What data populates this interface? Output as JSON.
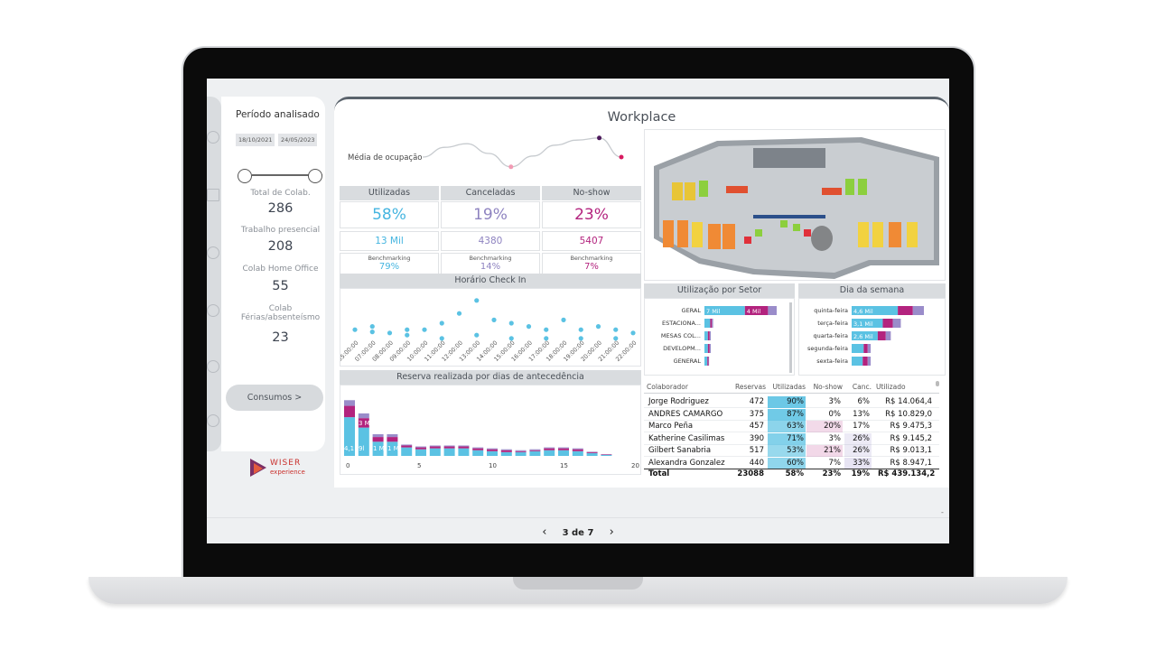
{
  "left_panel": {
    "periodo_label": "Período analisado",
    "date_start": "18/10/2021",
    "date_end": "24/05/2023",
    "kpis": [
      {
        "label": "Total de Colab.",
        "value": "286"
      },
      {
        "label": "Trabalho presencial",
        "value": "208"
      },
      {
        "label": "Colab Home Office",
        "value": "55"
      },
      {
        "label": "Colab Férias/absenteísmo",
        "value": "23"
      }
    ],
    "consumos_button": "Consumos >",
    "logo_top": "WISER",
    "logo_bottom": "experience"
  },
  "main": {
    "title": "Workplace",
    "media_label": "Média de ocupação",
    "tiles": [
      {
        "header": "Utilizadas",
        "pct": "58%",
        "count": "13 Mil",
        "bench_label": "Benchmarking",
        "bench": "79%",
        "color": "#45b5e0"
      },
      {
        "header": "Canceladas",
        "pct": "19%",
        "count": "4380",
        "bench_label": "Benchmarking",
        "bench": "14%",
        "color": "#8e83c0"
      },
      {
        "header": "No-show",
        "pct": "23%",
        "count": "5407",
        "bench_label": "Benchmarking",
        "bench": "7%",
        "color": "#b3237e"
      }
    ],
    "horario_title": "Horário Check In",
    "horario_ticks": [
      "05:00:00",
      "07:00:00",
      "08:00:00",
      "09:00:00",
      "10:00:00",
      "11:00:00",
      "12:00:00",
      "13:00:00",
      "14:00:00",
      "15:00:00",
      "16:00:00",
      "17:00:00",
      "18:00:00",
      "19:00:00",
      "20:00:00",
      "21:00:00",
      "22:00:00"
    ],
    "reserva_title": "Reserva realizada por dias de antecedência",
    "reserva_ticks": [
      "0",
      "5",
      "10",
      "15",
      "20"
    ],
    "reserva_labels": [
      "4,1",
      "3 M",
      "9l",
      "1 Mi",
      "1 Mi"
    ],
    "setor_title": "Utilização por Setor",
    "setor": [
      {
        "label": "GERAL",
        "a_lbl": "7 Mil",
        "b_lbl": "4 Mil"
      },
      {
        "label": "ESTACIONA...",
        "a_lbl": "",
        "b_lbl": ""
      },
      {
        "label": "MESAS COL...",
        "a_lbl": "",
        "b_lbl": ""
      },
      {
        "label": "DEVELOPM...",
        "a_lbl": "",
        "b_lbl": ""
      },
      {
        "label": "GENERAL",
        "a_lbl": "",
        "b_lbl": ""
      }
    ],
    "dia_title": "Dia da semana",
    "dias": [
      {
        "label": "quinta-feira",
        "a_lbl": "4,6 Mil"
      },
      {
        "label": "terça-feira",
        "a_lbl": "3,1 Mil"
      },
      {
        "label": "quarta-feira",
        "a_lbl": "2,6 Mil"
      },
      {
        "label": "segunda-feira",
        "a_lbl": ""
      },
      {
        "label": "sexta-feira",
        "a_lbl": ""
      }
    ],
    "table": {
      "headers": [
        "Colaborador",
        "Reservas",
        "Utilizadas",
        "No-show",
        "Canc.",
        "Utilizado"
      ],
      "rows": [
        [
          "Jorge Rodriguez",
          "472",
          "90%",
          "3%",
          "6%",
          "R$ 14.064,4"
        ],
        [
          "ANDRES CAMARGO",
          "375",
          "87%",
          "0%",
          "13%",
          "R$ 10.829,0"
        ],
        [
          "Marco Peña",
          "457",
          "63%",
          "20%",
          "17%",
          "R$ 9.475,3"
        ],
        [
          "Katherine Casilimas",
          "390",
          "71%",
          "3%",
          "26%",
          "R$ 9.145,2"
        ],
        [
          "Gilbert Sanabria",
          "517",
          "53%",
          "21%",
          "26%",
          "R$ 9.013,1"
        ],
        [
          "Alexandra Gonzalez",
          "440",
          "60%",
          "7%",
          "33%",
          "R$ 8.947,1"
        ]
      ],
      "total": [
        "Total",
        "23088",
        "58%",
        "23%",
        "19%",
        "R$ 439.134,2"
      ]
    }
  },
  "pager": {
    "prev": "‹",
    "label": "3 de 7",
    "next": "›"
  },
  "chart_data": [
    {
      "type": "line",
      "title": "Média de ocupação",
      "x": [
        1,
        2,
        3,
        4,
        5,
        6,
        7,
        8,
        9,
        10
      ],
      "values": [
        0.45,
        0.72,
        0.82,
        0.55,
        0.18,
        0.48,
        0.78,
        0.92,
        0.98,
        0.45
      ]
    },
    {
      "type": "scatter",
      "title": "Horário Check In",
      "categories": [
        "05:00:00",
        "07:00:00",
        "08:00:00",
        "09:00:00",
        "10:00:00",
        "11:00:00",
        "12:00:00",
        "13:00:00",
        "14:00:00",
        "15:00:00",
        "16:00:00",
        "17:00:00",
        "18:00:00",
        "19:00:00",
        "20:00:00",
        "21:00:00",
        "22:00:00"
      ],
      "values": [
        3,
        4,
        2,
        3,
        3,
        5,
        8,
        12,
        6,
        5,
        4,
        3,
        6,
        3,
        4,
        3,
        2
      ],
      "extra_points": [
        4,
        3,
        2,
        3,
        2,
        2,
        2,
        2
      ]
    },
    {
      "type": "bar",
      "title": "Reserva realizada por dias de antecedência",
      "x": [
        0,
        1,
        2,
        3,
        4,
        5,
        6,
        7,
        8,
        9,
        10,
        11,
        12,
        13,
        14,
        15,
        16,
        17,
        18,
        19,
        20
      ],
      "series": [
        {
          "values": [
            4.1,
            3.0,
            1.5,
            1.5,
            0.9,
            0.7,
            0.8,
            0.8,
            0.8,
            0.6,
            0.5,
            0.4,
            0.4,
            0.5,
            0.6,
            0.6,
            0.5,
            0.3,
            0.1,
            0,
            0
          ]
        },
        {
          "values": [
            1.2,
            1.0,
            0.5,
            0.5,
            0.2,
            0.2,
            0.2,
            0.2,
            0.2,
            0.2,
            0.2,
            0.2,
            0.1,
            0.1,
            0.2,
            0.2,
            0.2,
            0.1,
            0.05,
            0,
            0
          ]
        },
        {
          "values": [
            0.6,
            0.5,
            0.3,
            0.3,
            0.1,
            0.1,
            0.1,
            0.1,
            0.1,
            0.1,
            0.1,
            0.1,
            0.1,
            0.1,
            0.1,
            0.1,
            0.1,
            0.05,
            0.03,
            0,
            0
          ]
        }
      ],
      "ylim": [
        0,
        6.5
      ]
    },
    {
      "type": "bar",
      "title": "Utilização por Setor",
      "categories": [
        "GERAL",
        "ESTACIONA...",
        "MESAS COL...",
        "DEVELOPM...",
        "GENERAL"
      ],
      "series": [
        {
          "values": [
            7.0,
            1.0,
            0.6,
            0.6,
            0.5
          ]
        },
        {
          "values": [
            4.0,
            0.3,
            0.3,
            0.3,
            0.2
          ]
        },
        {
          "values": [
            1.5,
            0.2,
            0.2,
            0.2,
            0.1
          ]
        }
      ]
    },
    {
      "type": "bar",
      "title": "Dia da semana",
      "categories": [
        "quinta-feira",
        "terça-feira",
        "quarta-feira",
        "segunda-feira",
        "sexta-feira"
      ],
      "series": [
        {
          "values": [
            4.6,
            3.1,
            2.6,
            1.2,
            1.1
          ]
        },
        {
          "values": [
            1.5,
            1.0,
            0.8,
            0.4,
            0.5
          ]
        },
        {
          "values": [
            1.1,
            0.8,
            0.5,
            0.3,
            0.3
          ]
        }
      ]
    }
  ]
}
